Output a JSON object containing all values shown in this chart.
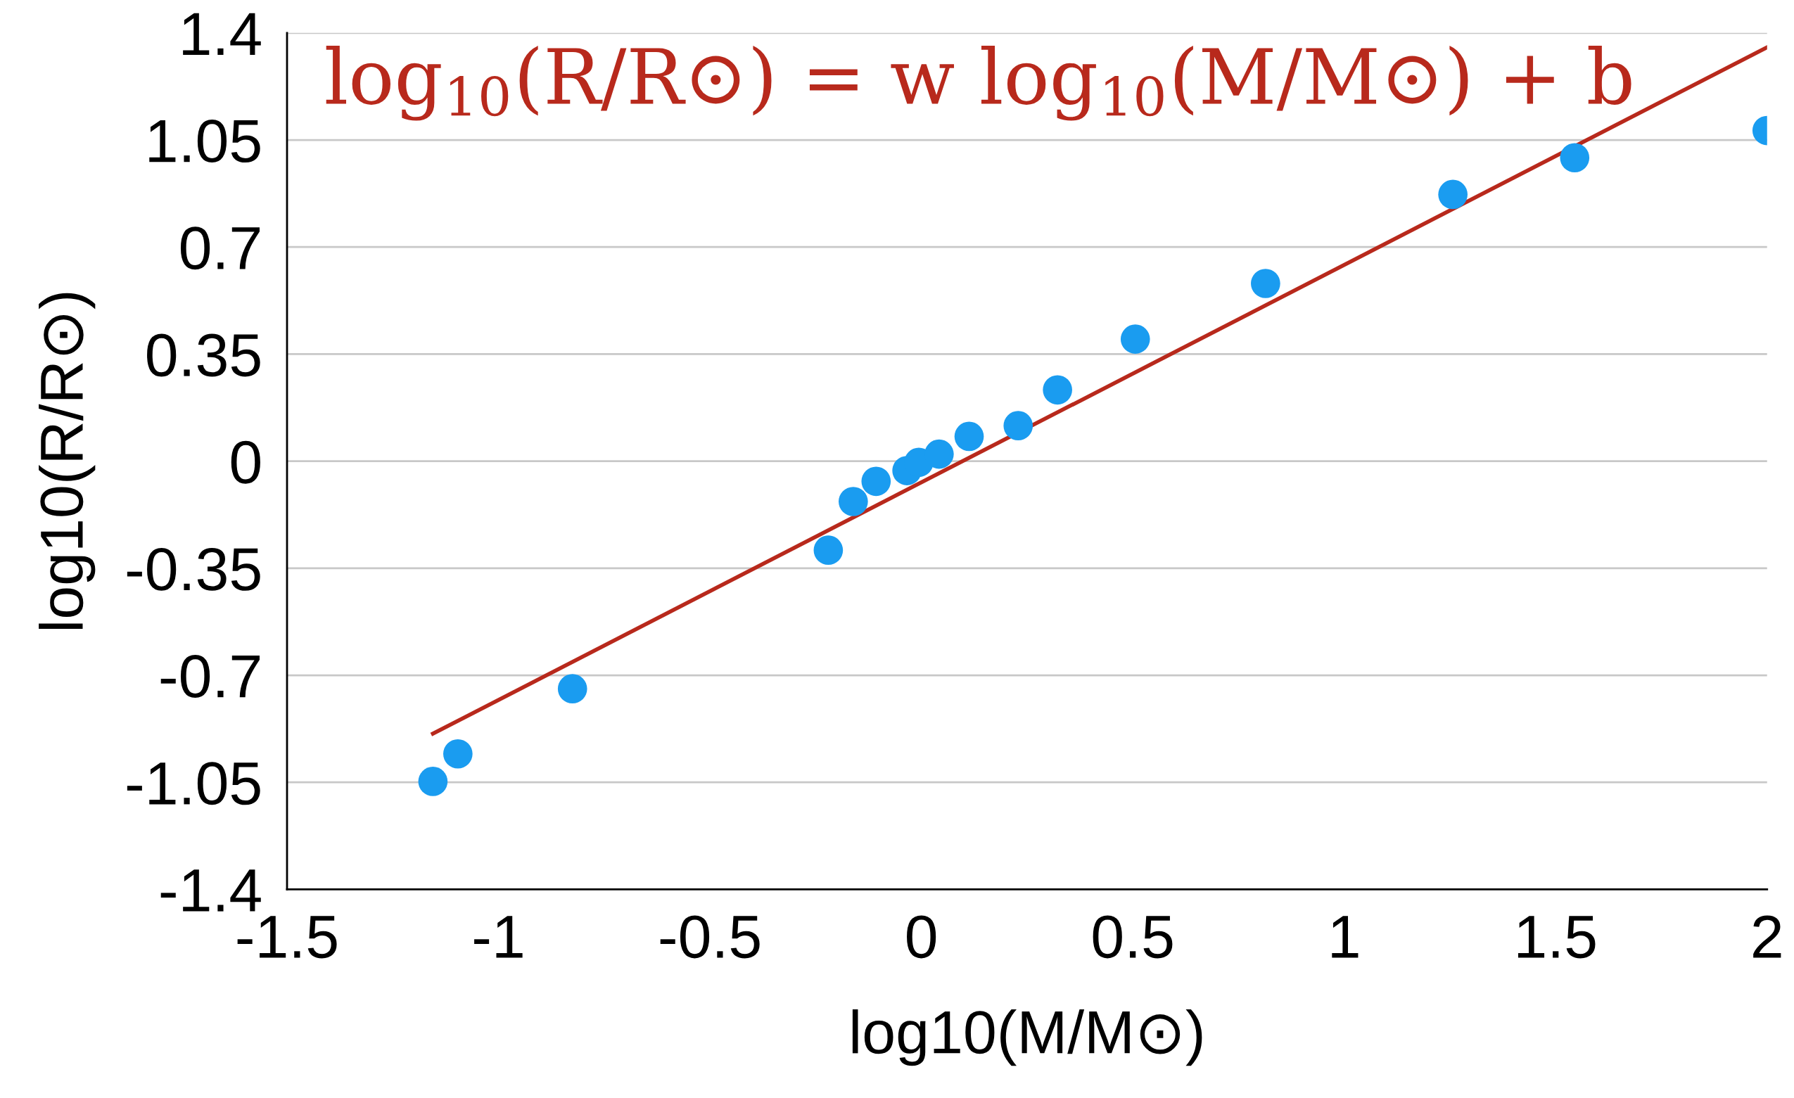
{
  "chart_data": {
    "type": "scatter",
    "xlabel": "log10(M/M⊙)",
    "ylabel": "log10(R/R⊙)",
    "annotations": [
      "log$_{10}$(R/R⊙) = w log$_{10}$(M/M⊙) + b"
    ],
    "xlim": [
      -1.5,
      2
    ],
    "xticks": [
      -1.5,
      -1,
      -0.5,
      0,
      0.5,
      1,
      1.5,
      2
    ],
    "ylim": [
      -1.4,
      1.4
    ],
    "yticks": [
      -1.4,
      -1.05,
      -0.7,
      -0.35,
      0,
      0.35,
      0.7,
      1.05,
      1.4
    ],
    "grid": "y",
    "series": [
      {
        "marker": "circle",
        "color": "#1a9cf0",
        "x": [
          -1.155,
          -1.096,
          -0.825,
          -0.22,
          -0.161,
          -0.107,
          -0.034,
          -0.006,
          0.042,
          0.113,
          0.229,
          0.322,
          0.506,
          0.814,
          1.257,
          1.545,
          2.0
        ],
        "values": [
          -1.047,
          -0.957,
          -0.744,
          -0.291,
          -0.132,
          -0.066,
          -0.031,
          -0.004,
          0.023,
          0.081,
          0.116,
          0.233,
          0.399,
          0.581,
          0.872,
          0.992,
          1.081
        ]
      },
      {
        "type": "line",
        "marker": "none",
        "color": "#b8291c",
        "line_style": "solid",
        "x": [
          -1.155,
          2.0
        ],
        "values": [
          -0.891,
          1.353
        ]
      }
    ]
  }
}
